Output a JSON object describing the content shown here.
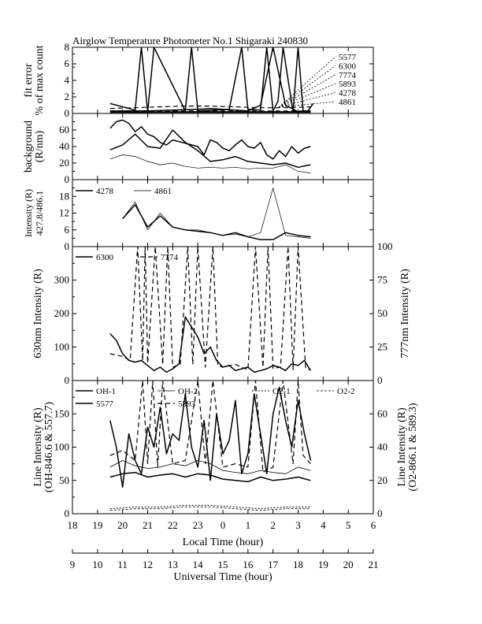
{
  "chart_data": {
    "type": "line",
    "title": "Airglow Temperature Photometer No.1  Shigaraki  240830",
    "x_axes": {
      "local_time": {
        "label": "Local Time (hour)",
        "range": [
          18,
          30
        ],
        "tick_labels": [
          "18",
          "19",
          "20",
          "21",
          "22",
          "23",
          "0",
          "1",
          "2",
          "3",
          "4",
          "5",
          "6"
        ]
      },
      "universal_time": {
        "label": "Universal Time (hour)",
        "range": [
          9,
          21
        ],
        "tick_labels": [
          "9",
          "10",
          "11",
          "12",
          "13",
          "14",
          "15",
          "16",
          "17",
          "18",
          "19",
          "20",
          "21"
        ]
      }
    },
    "panels": [
      {
        "id": "fit_error",
        "ylabel": "fit error",
        "ylabel2": "% of max count",
        "ylim": [
          0,
          8
        ],
        "yticks": [
          "0",
          "2",
          "4",
          "6",
          "8"
        ],
        "legend": [
          "5577",
          "6300",
          "7774",
          "5893",
          "4278",
          "4861"
        ],
        "series": [
          {
            "name": "5577",
            "x": [
              19.5,
              20.5,
              20.75,
              21.0,
              21.25,
              22.5,
              22.75,
              23.0,
              24.25,
              24.75,
              25.0,
              25.5,
              25.75,
              26.0,
              26.2,
              26.4,
              26.8,
              27.0,
              27.2,
              27.4,
              27.6
            ],
            "y": [
              1.2,
              0.4,
              8,
              0.2,
              8,
              0.3,
              8,
              0.3,
              0.5,
              8,
              0.5,
              0.4,
              8,
              0.3,
              1.5,
              8,
              0.2,
              8,
              0.3,
              0.3,
              1.2
            ]
          },
          {
            "name": "6300",
            "x": [
              19.5,
              20.0,
              21.0,
              22.0,
              23.0,
              23.5,
              24.5,
              25.0,
              25.5,
              26.0,
              26.5,
              27.0,
              27.5
            ],
            "y": [
              0.3,
              0.3,
              0.3,
              0.4,
              0.5,
              0.6,
              0.4,
              0.3,
              1.0,
              8.0,
              1.0,
              0.2,
              0.3
            ]
          },
          {
            "name": "7774",
            "x": [
              19.5,
              20.5,
              21.5,
              22.5,
              23.5,
              24.5,
              25.5,
              26.5,
              27.5
            ],
            "y": [
              0.6,
              0.7,
              0.8,
              0.9,
              0.9,
              0.8,
              0.7,
              0.7,
              0.8
            ]
          },
          {
            "name": "5893",
            "x": [
              19.5,
              21.0,
              22.5,
              24.0,
              25.5,
              27.0,
              27.5
            ],
            "y": [
              0.2,
              0.2,
              0.3,
              0.3,
              0.3,
              0.3,
              0.3
            ]
          },
          {
            "name": "4278",
            "x": [
              19.5,
              21.0,
              22.5,
              24.0,
              25.5,
              27.5
            ],
            "y": [
              0.15,
              0.15,
              0.2,
              0.2,
              0.2,
              0.2
            ]
          },
          {
            "name": "4861",
            "x": [
              19.5,
              21.0,
              22.5,
              24.0,
              25.5,
              27.5
            ],
            "y": [
              0.1,
              0.1,
              0.1,
              0.1,
              0.1,
              0.1
            ]
          }
        ]
      },
      {
        "id": "background",
        "ylabel": "background",
        "ylabel2": "(R/nm)",
        "ylim": [
          0,
          80
        ],
        "yticks": [
          "0",
          "20",
          "40",
          "60"
        ],
        "series": [
          {
            "name": "5577",
            "x": [
              19.5,
              19.75,
              20.0,
              20.25,
              20.5,
              20.75,
              21.0,
              21.25,
              21.5,
              21.75,
              22.0,
              22.5,
              23.0,
              23.25,
              23.5,
              23.75,
              24.0,
              24.25,
              24.5,
              24.75,
              25.0,
              25.25,
              25.5,
              25.75,
              26.0,
              26.25,
              26.5,
              26.75,
              27.0,
              27.25,
              27.5
            ],
            "y": [
              62,
              70,
              72,
              68,
              58,
              64,
              55,
              52,
              45,
              42,
              48,
              44,
              40,
              30,
              48,
              45,
              38,
              35,
              42,
              48,
              40,
              38,
              45,
              30,
              25,
              35,
              28,
              40,
              32,
              38,
              40
            ]
          },
          {
            "name": "6300",
            "x": [
              19.5,
              20.0,
              20.5,
              21.0,
              21.5,
              22.0,
              22.5,
              23.0,
              23.5,
              24.0,
              24.5,
              25.0,
              25.5,
              26.0,
              26.5,
              27.0,
              27.5
            ],
            "y": [
              36,
              42,
              55,
              40,
              38,
              60,
              45,
              35,
              22,
              24,
              28,
              22,
              20,
              18,
              20,
              15,
              18
            ]
          },
          {
            "name": "4861",
            "x": [
              19.5,
              20.0,
              20.5,
              21.0,
              21.5,
              22.0,
              22.5,
              23.0,
              23.5,
              24.0,
              24.5,
              25.0,
              25.5,
              26.0,
              26.5,
              27.0,
              27.5
            ],
            "y": [
              25,
              30,
              28,
              22,
              18,
              20,
              16,
              14,
              15,
              14,
              15,
              13,
              14,
              14,
              18,
              10,
              8
            ]
          }
        ]
      },
      {
        "id": "blue_intensity",
        "ylabel": "Intensity (R)",
        "ylabel2": "427.8/486.1",
        "ylim": [
          0,
          24
        ],
        "yticks": [
          "0",
          "6",
          "12",
          "18"
        ],
        "legend": [
          "4278",
          "4861"
        ],
        "series": [
          {
            "name": "4278",
            "x": [
              20.0,
              20.5,
              21.0,
              21.5,
              22.0,
              22.5,
              23.0,
              23.5,
              24.0,
              24.5,
              25.0,
              25.5,
              26.0,
              26.5,
              27.0,
              27.5
            ],
            "y": [
              10,
              15,
              7,
              11,
              7,
              6,
              5.5,
              5,
              4,
              5,
              3.5,
              2.5,
              2.5,
              5,
              4,
              3.5
            ]
          },
          {
            "name": "4861",
            "x": [
              20.0,
              20.5,
              21.0,
              21.5,
              22.0,
              22.5,
              23.0,
              23.5,
              24.0,
              24.5,
              25.0,
              25.5,
              26.0,
              26.5,
              27.0,
              27.5
            ],
            "y": [
              10,
              16,
              6,
              12,
              7,
              6,
              6,
              5,
              4,
              4.5,
              3.5,
              5,
              21,
              4,
              3.5,
              3
            ]
          }
        ]
      },
      {
        "id": "red_intensity",
        "ylabel": "630nm Intensity (R)",
        "ylabel_right": "777nm Intensity (R)",
        "ylim": [
          0,
          400
        ],
        "yticks": [
          "0",
          "100",
          "200",
          "300"
        ],
        "ylim_right": [
          0,
          100
        ],
        "yticks_right": [
          "0",
          "25",
          "50",
          "75",
          "100"
        ],
        "legend": [
          "6300",
          "7774"
        ],
        "series": [
          {
            "name": "6300",
            "axis": "left",
            "x": [
              19.5,
              19.75,
              20.0,
              20.25,
              20.5,
              20.75,
              21.0,
              21.25,
              21.5,
              21.75,
              22.0,
              22.25,
              22.5,
              22.75,
              23.0,
              23.25,
              23.5,
              23.75,
              24.0,
              24.25,
              24.5,
              24.75,
              25.0,
              25.25,
              25.5,
              25.75,
              26.0,
              26.25,
              26.5,
              26.75,
              27.0,
              27.25,
              27.5
            ],
            "y": [
              140,
              120,
              80,
              60,
              55,
              60,
              45,
              30,
              40,
              25,
              35,
              50,
              190,
              160,
              130,
              80,
              100,
              60,
              40,
              45,
              30,
              35,
              40,
              25,
              30,
              35,
              45,
              40,
              30,
              50,
              45,
              60,
              30
            ]
          },
          {
            "name": "7774",
            "axis": "right",
            "x": [
              19.5,
              20.0,
              20.3,
              20.6,
              20.8,
              20.9,
              21.0,
              21.3,
              21.6,
              21.8,
              22.0,
              22.3,
              22.6,
              22.8,
              23.0,
              23.3,
              23.6,
              23.8,
              24.0,
              24.5,
              25.0,
              25.3,
              25.6,
              25.8,
              26.0,
              26.3,
              26.6,
              26.8,
              27.0,
              27.3,
              27.5
            ],
            "y": [
              20,
              18,
              15,
              100,
              15,
              100,
              13,
              100,
              12,
              100,
              10,
              12,
              100,
              12,
              100,
              10,
              100,
              11,
              10,
              12,
              8,
              100,
              10,
              100,
              9,
              10,
              100,
              8,
              100,
              9,
              8
            ]
          }
        ]
      },
      {
        "id": "line_intensity",
        "ylabel": "Line Intensity (R)",
        "ylabel2": "(OH-846.6 & 557.7)",
        "ylabel_right": "Line Intensity (R)",
        "ylabel_right2": "(O2-866.1 & 589.3)",
        "ylim": [
          0,
          200
        ],
        "yticks": [
          "0",
          "50",
          "100",
          "150"
        ],
        "ylim_right": [
          0,
          80
        ],
        "yticks_right": [
          "0",
          "20",
          "40",
          "60"
        ],
        "legend": [
          "OH-1",
          "OH-2",
          "O2-1",
          "O2-2",
          "5577",
          "5893"
        ],
        "series": [
          {
            "name": "5577",
            "axis": "left",
            "x": [
              19.5,
              19.75,
              20.0,
              20.25,
              20.5,
              20.75,
              21.0,
              21.25,
              21.5,
              21.75,
              22.0,
              22.25,
              22.5,
              22.75,
              23.0,
              23.25,
              23.5,
              23.75,
              24.0,
              24.25,
              24.5,
              24.75,
              25.0,
              25.25,
              25.5,
              25.75,
              26.0,
              26.25,
              26.5,
              26.75,
              27.0,
              27.25,
              27.5
            ],
            "y": [
              140,
              100,
              40,
              120,
              80,
              60,
              130,
              100,
              160,
              90,
              120,
              110,
              180,
              100,
              70,
              140,
              50,
              150,
              90,
              110,
              170,
              60,
              90,
              180,
              120,
              60,
              150,
              190,
              140,
              100,
              170,
              120,
              80
            ]
          },
          {
            "name": "OH-1",
            "axis": "left",
            "x": [
              19.5,
              20.0,
              20.5,
              21.0,
              21.5,
              22.0,
              22.5,
              23.0,
              23.5,
              24.0,
              24.5,
              25.0,
              25.5,
              26.0,
              26.5,
              27.0,
              27.5
            ],
            "y": [
              55,
              60,
              62,
              55,
              58,
              60,
              55,
              60,
              58,
              52,
              50,
              48,
              55,
              50,
              52,
              55,
              50
            ]
          },
          {
            "name": "OH-2",
            "axis": "left",
            "x": [
              19.5,
              20.0,
              20.5,
              21.0,
              21.5,
              22.0,
              22.5,
              23.0,
              23.5,
              24.0,
              24.5,
              25.0,
              25.5,
              26.0,
              26.5,
              27.0,
              27.5
            ],
            "y": [
              70,
              80,
              72,
              68,
              70,
              75,
              72,
              80,
              75,
              65,
              62,
              60,
              65,
              62,
              60,
              70,
              65
            ]
          },
          {
            "name": "5893",
            "axis": "right",
            "x": [
              19.5,
              20.0,
              20.5,
              20.8,
              21.0,
              21.2,
              21.4,
              21.6,
              22.0,
              22.5,
              23.0,
              23.3,
              23.6,
              24.0,
              24.5,
              25.0,
              25.3,
              25.6,
              26.0,
              26.4,
              26.8,
              27.0,
              27.2,
              27.5
            ],
            "y": [
              35,
              38,
              32,
              80,
              30,
              80,
              28,
              80,
              30,
              32,
              80,
              30,
              80,
              28,
              30,
              28,
              80,
              25,
              28,
              80,
              30,
              80,
              35,
              30
            ]
          },
          {
            "name": "O2-1",
            "axis": "right",
            "x": [
              19.5,
              20.5,
              21.5,
              22.5,
              23.5,
              24.5,
              25.5,
              26.5,
              27.5
            ],
            "y": [
              3,
              4,
              4,
              5,
              5,
              4,
              3,
              4,
              4
            ]
          },
          {
            "name": "O2-2",
            "axis": "right",
            "x": [
              19.5,
              20.5,
              21.5,
              22.5,
              23.5,
              24.5,
              25.5,
              26.5,
              27.5
            ],
            "y": [
              2,
              3,
              3,
              4,
              4,
              3,
              2,
              3,
              3
            ]
          }
        ]
      }
    ]
  }
}
